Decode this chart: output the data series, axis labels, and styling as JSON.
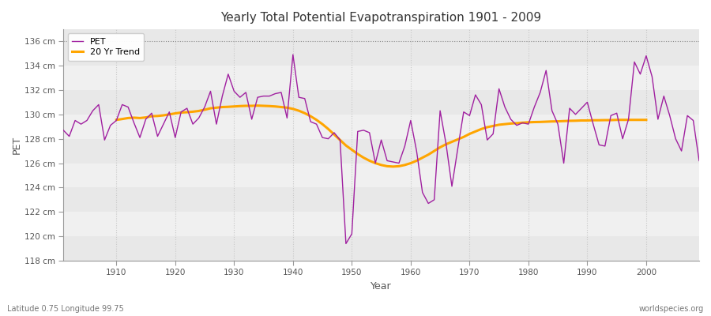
{
  "title": "Yearly Total Potential Evapotranspiration 1901 - 2009",
  "xlabel": "Year",
  "ylabel": "PET",
  "bottom_left_label": "Latitude 0.75 Longitude 99.75",
  "bottom_right_label": "worldspecies.org",
  "pet_color": "#a020a0",
  "trend_color": "#ffa500",
  "fig_bg_color": "#ffffff",
  "plot_bg_color": "#e8e8e8",
  "band_colors": [
    "#e8e8e8",
    "#f0f0f0"
  ],
  "ylim": [
    118,
    137
  ],
  "xlim": [
    1901,
    2009
  ],
  "yticks": [
    118,
    120,
    122,
    124,
    126,
    128,
    130,
    132,
    134,
    136
  ],
  "ytick_labels": [
    "118 cm",
    "120 cm",
    "122 cm",
    "124 cm",
    "126 cm",
    "128 cm",
    "130 cm",
    "132 cm",
    "134 cm",
    "136 cm"
  ],
  "xticks": [
    1910,
    1920,
    1930,
    1940,
    1950,
    1960,
    1970,
    1980,
    1990,
    2000
  ],
  "years": [
    1901,
    1902,
    1903,
    1904,
    1905,
    1906,
    1907,
    1908,
    1909,
    1910,
    1911,
    1912,
    1913,
    1914,
    1915,
    1916,
    1917,
    1918,
    1919,
    1920,
    1921,
    1922,
    1923,
    1924,
    1925,
    1926,
    1927,
    1928,
    1929,
    1930,
    1931,
    1932,
    1933,
    1934,
    1935,
    1936,
    1937,
    1938,
    1939,
    1940,
    1941,
    1942,
    1943,
    1944,
    1945,
    1946,
    1947,
    1948,
    1949,
    1950,
    1951,
    1952,
    1953,
    1954,
    1955,
    1956,
    1957,
    1958,
    1959,
    1960,
    1961,
    1962,
    1963,
    1964,
    1965,
    1966,
    1967,
    1968,
    1969,
    1970,
    1971,
    1972,
    1973,
    1974,
    1975,
    1976,
    1977,
    1978,
    1979,
    1980,
    1981,
    1982,
    1983,
    1984,
    1985,
    1986,
    1987,
    1988,
    1989,
    1990,
    1991,
    1992,
    1993,
    1994,
    1995,
    1996,
    1997,
    1998,
    1999,
    2000,
    2001,
    2002,
    2003,
    2004,
    2005,
    2006,
    2007,
    2008,
    2009
  ],
  "pet": [
    128.7,
    128.2,
    129.5,
    129.2,
    129.5,
    130.3,
    130.8,
    127.9,
    129.1,
    129.5,
    130.8,
    130.6,
    129.3,
    128.1,
    129.6,
    130.1,
    128.2,
    129.2,
    130.2,
    128.1,
    130.2,
    130.5,
    129.2,
    129.7,
    130.6,
    131.9,
    129.2,
    131.5,
    133.3,
    131.9,
    131.4,
    131.8,
    129.6,
    131.4,
    131.5,
    131.5,
    131.7,
    131.8,
    129.7,
    134.9,
    131.4,
    131.3,
    129.4,
    129.2,
    128.1,
    128.0,
    128.5,
    127.9,
    119.4,
    120.2,
    128.6,
    128.7,
    128.5,
    126.0,
    127.9,
    126.2,
    126.1,
    126.0,
    127.4,
    129.5,
    127.0,
    123.6,
    122.7,
    123.0,
    130.3,
    127.6,
    124.1,
    127.2,
    130.2,
    129.9,
    131.6,
    130.8,
    127.9,
    128.4,
    132.1,
    130.6,
    129.6,
    129.1,
    129.3,
    129.2,
    130.6,
    131.8,
    133.6,
    130.3,
    129.2,
    126.0,
    130.5,
    130.0,
    130.5,
    131.0,
    129.2,
    127.5,
    127.4,
    129.9,
    130.1,
    128.0,
    129.6,
    134.3,
    133.3,
    134.8,
    133.1,
    129.6,
    131.5,
    129.9,
    128.0,
    127.0,
    129.9,
    129.5,
    126.2
  ],
  "trend_years": [
    1910,
    1911,
    1912,
    1913,
    1914,
    1915,
    1916,
    1917,
    1918,
    1919,
    1920,
    1921,
    1922,
    1923,
    1924,
    1925,
    1926,
    1927,
    1928,
    1929,
    1930,
    1931,
    1932,
    1933,
    1934,
    1935,
    1936,
    1937,
    1938,
    1939,
    1940,
    1941,
    1942,
    1943,
    1944,
    1945,
    1946,
    1947,
    1948,
    1949,
    1950,
    1951,
    1952,
    1953,
    1954,
    1955,
    1956,
    1957,
    1958,
    1959,
    1960,
    1961,
    1962,
    1963,
    1964,
    1965,
    1966,
    1967,
    1968,
    1969,
    1970,
    1971,
    1972,
    1973,
    1974,
    1975,
    1976,
    1977,
    1978,
    1979,
    1980,
    1981,
    1982,
    1983,
    1984,
    1985,
    1986,
    1987,
    1988,
    1989,
    1990,
    1991,
    1992,
    1993,
    1994,
    1995,
    1996,
    1997,
    1998,
    1999,
    2000
  ],
  "trend": [
    129.55,
    129.62,
    129.7,
    129.73,
    129.7,
    129.75,
    129.85,
    129.87,
    129.92,
    130.0,
    130.08,
    130.15,
    130.18,
    130.22,
    130.28,
    130.38,
    130.5,
    130.55,
    130.6,
    130.62,
    130.65,
    130.68,
    130.7,
    130.7,
    130.72,
    130.7,
    130.68,
    130.65,
    130.6,
    130.55,
    130.45,
    130.3,
    130.1,
    129.85,
    129.55,
    129.2,
    128.8,
    128.35,
    127.9,
    127.45,
    127.1,
    126.75,
    126.45,
    126.2,
    126.0,
    125.85,
    125.75,
    125.72,
    125.75,
    125.85,
    126.0,
    126.2,
    126.45,
    126.7,
    127.0,
    127.3,
    127.55,
    127.75,
    127.95,
    128.15,
    128.4,
    128.6,
    128.8,
    128.95,
    129.05,
    129.15,
    129.2,
    129.25,
    129.28,
    129.32,
    129.35,
    129.37,
    129.38,
    129.4,
    129.42,
    129.43,
    129.45,
    129.47,
    129.48,
    129.5,
    129.5,
    129.52,
    129.52,
    129.53,
    129.53,
    129.55,
    129.55,
    129.55,
    129.55,
    129.55,
    129.55
  ]
}
